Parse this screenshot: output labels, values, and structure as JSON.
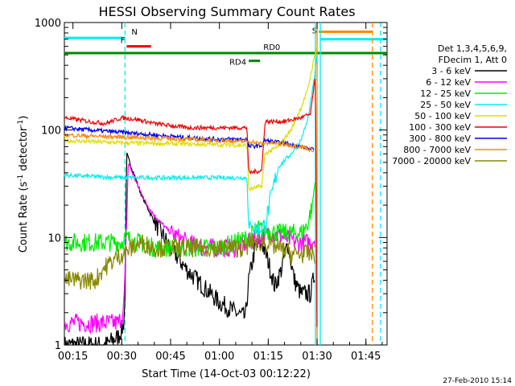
{
  "chart_data": {
    "type": "line",
    "title": "HESSI Observing Summary Count Rates",
    "xlabel": "Start Time (14-Oct-03 00:12:22)",
    "ylabel": "Count Rate (s⁻¹ detector⁻¹)",
    "ylabel_main": "Count Rate (s",
    "ylabel_sup1": "-1",
    "ylabel_mid": " detector",
    "ylabel_sup2": "-1",
    "ylabel_end": ")",
    "y_scale": "log",
    "ylim": [
      1,
      1000
    ],
    "xlim": [
      "00:12:22",
      "01:51:30"
    ],
    "x_ticks": [
      "00:15",
      "00:30",
      "00:45",
      "01:00",
      "01:15",
      "01:30",
      "01:45"
    ],
    "y_ticks": [
      "1",
      "10",
      "100",
      "1000"
    ],
    "legend": {
      "placement": "right",
      "header": [
        "Det 1,3,4,5,6,9,",
        "FDecim 1, Att 0"
      ],
      "entries": [
        {
          "label": "3 - 6 keV",
          "color": "#000000"
        },
        {
          "label": "6 - 12 keV",
          "color": "#ff00ff"
        },
        {
          "label": "12 - 25 keV",
          "color": "#00ee00"
        },
        {
          "label": "25 - 50 keV",
          "color": "#00eeee"
        },
        {
          "label": "50 - 100 keV",
          "color": "#dddd00"
        },
        {
          "label": "100 - 300 keV",
          "color": "#ee0000"
        },
        {
          "label": "300 - 800 keV",
          "color": "#0000ee"
        },
        {
          "label": "800 - 7000 keV",
          "color": "#ff8800"
        },
        {
          "label": "7000 - 20000 keV",
          "color": "#888800"
        }
      ]
    },
    "flag_bars": [
      {
        "label": "N",
        "color": "#00eeee",
        "start": "00:12:22",
        "end": "00:31:00",
        "level": 720
      },
      {
        "label": "F",
        "color": "#ee0000",
        "start": "00:31:30",
        "end": "00:39:00",
        "level": 600
      },
      {
        "label": "RD0",
        "color": "#008800",
        "start": "00:12:22",
        "end": "01:51:30",
        "level": 520
      },
      {
        "label": "RD4",
        "color": "#008800",
        "start": "01:09:00",
        "end": "01:12:30",
        "level": 440
      },
      {
        "label": "S",
        "color": "#ff8800",
        "start": "01:30:30",
        "end": "01:47:00",
        "level": 820
      },
      {
        "label": "",
        "color": "#00eeee",
        "start": "01:31:00",
        "end": "01:51:30",
        "level": 700
      }
    ],
    "vlines": [
      {
        "time": "00:31:00",
        "color": "#00eeee",
        "style": "dashed"
      },
      {
        "time": "01:29:30",
        "color": "#00eeee",
        "style": "solid"
      },
      {
        "time": "01:30:00",
        "color": "#ff8800",
        "style": "solid"
      },
      {
        "time": "01:31:00",
        "color": "#00eeee",
        "style": "solid"
      },
      {
        "time": "01:47:00",
        "color": "#ff8800",
        "style": "dashed"
      },
      {
        "time": "01:49:30",
        "color": "#00eeee",
        "style": "dashed"
      }
    ],
    "series": [
      {
        "name": "3 - 6 keV",
        "color": "#000000",
        "x": [
          "00:12:22",
          "00:25:00",
          "00:29:00",
          "00:30:30",
          "00:31:00",
          "00:31:30",
          "00:33:00",
          "00:36:00",
          "00:40:00",
          "00:45:00",
          "00:50:00",
          "00:55:00",
          "01:00:00",
          "01:05:00",
          "01:08:00",
          "01:09:00",
          "01:11:00",
          "01:13:00",
          "01:15:00",
          "01:17:00",
          "01:19:00",
          "01:21:00",
          "01:23:00",
          "01:25:00",
          "01:28:00",
          "01:29:30"
        ],
        "y": [
          1,
          1,
          1.2,
          1.5,
          2.5,
          60,
          45,
          25,
          14,
          8,
          5,
          3.5,
          2.5,
          2,
          1.8,
          4,
          8,
          9,
          6,
          3.5,
          5,
          9,
          4,
          3,
          3,
          5
        ]
      },
      {
        "name": "6 - 12 keV",
        "color": "#ff00ff",
        "x": [
          "00:12:22",
          "00:25:00",
          "00:29:00",
          "00:30:30",
          "00:31:00",
          "00:32:00",
          "00:34:00",
          "00:37:00",
          "00:40:00",
          "00:45:00",
          "00:50:00",
          "00:55:00",
          "01:00:00",
          "01:05:00",
          "01:09:00",
          "01:12:00",
          "01:16:00",
          "01:20:00",
          "01:24:00",
          "01:28:00",
          "01:29:30"
        ],
        "y": [
          1.6,
          1.6,
          1.6,
          2,
          4,
          50,
          35,
          22,
          16,
          11,
          9,
          8,
          8,
          8,
          9,
          10,
          11,
          10,
          9,
          9,
          10
        ]
      },
      {
        "name": "12 - 25 keV",
        "color": "#00ee00",
        "x": [
          "00:12:22",
          "00:20:00",
          "00:27:00",
          "00:30:00",
          "00:31:00",
          "00:40:00",
          "00:50:00",
          "01:00:00",
          "01:09:00",
          "01:12:00",
          "01:18:00",
          "01:22:00",
          "01:25:00",
          "01:27:00",
          "01:28:30",
          "01:29:30"
        ],
        "y": [
          9,
          9,
          9,
          9,
          10,
          8,
          8,
          8,
          10,
          12,
          11,
          11,
          11,
          13,
          20,
          35
        ]
      },
      {
        "name": "25 - 50 keV",
        "color": "#00eeee",
        "x": [
          "00:12:22",
          "00:20:00",
          "00:30:00",
          "00:40:00",
          "00:50:00",
          "01:00:00",
          "01:08:30",
          "01:09:00",
          "01:12:00",
          "01:14:00",
          "01:18:00",
          "01:22:00",
          "01:25:00",
          "01:27:00",
          "01:28:00",
          "01:29:00",
          "01:30:00"
        ],
        "y": [
          38,
          37,
          36,
          36,
          36,
          36,
          36,
          12,
          12,
          13,
          45,
          60,
          80,
          120,
          180,
          280,
          500
        ]
      },
      {
        "name": "50 - 100 keV",
        "color": "#dddd00",
        "x": [
          "00:12:22",
          "00:20:00",
          "00:30:00",
          "00:40:00",
          "00:50:00",
          "01:00:00",
          "01:08:30",
          "01:09:00",
          "01:13:00",
          "01:14:00",
          "01:18:00",
          "01:22:00",
          "01:25:00",
          "01:27:00",
          "01:28:00",
          "01:29:00",
          "01:30:00"
        ],
        "y": [
          80,
          78,
          76,
          75,
          74,
          73,
          72,
          28,
          30,
          60,
          70,
          100,
          160,
          230,
          320,
          450,
          620
        ]
      },
      {
        "name": "100 - 300 keV",
        "color": "#ee0000",
        "x": [
          "00:12:22",
          "00:20:00",
          "00:25:00",
          "00:30:00",
          "00:35:00",
          "00:40:00",
          "00:50:00",
          "01:00:00",
          "01:08:30",
          "01:09:00",
          "01:13:00",
          "01:14:00",
          "01:20:00",
          "01:25:00",
          "01:28:00",
          "01:29:00",
          "01:29:30",
          "01:30:00"
        ],
        "y": [
          130,
          120,
          115,
          130,
          125,
          115,
          105,
          105,
          105,
          40,
          42,
          120,
          120,
          130,
          140,
          250,
          300,
          1
        ]
      },
      {
        "name": "300 - 800 keV",
        "color": "#0000ee",
        "x": [
          "00:12:22",
          "00:20:00",
          "00:30:00",
          "00:40:00",
          "00:50:00",
          "01:00:00",
          "01:08:30",
          "01:09:00",
          "01:13:00",
          "01:14:00",
          "01:20:00",
          "01:25:00",
          "01:29:00"
        ],
        "y": [
          105,
          100,
          95,
          90,
          85,
          82,
          82,
          70,
          72,
          80,
          75,
          70,
          65
        ]
      },
      {
        "name": "800 - 7000 keV",
        "color": "#ff8800",
        "x": [
          "00:12:22",
          "00:20:00",
          "00:30:00",
          "00:40:00",
          "00:50:00",
          "01:00:00",
          "01:08:30",
          "01:10:00",
          "01:13:00",
          "01:15:00",
          "01:20:00",
          "01:25:00",
          "01:29:00"
        ],
        "y": [
          90,
          88,
          86,
          84,
          82,
          80,
          78,
          78,
          74,
          76,
          74,
          70,
          65
        ]
      },
      {
        "name": "7000 - 20000 keV",
        "color": "#888800",
        "x": [
          "00:12:22",
          "00:22:00",
          "00:24:00",
          "00:27:00",
          "00:30:00",
          "00:33:00",
          "00:36:00",
          "00:40:00",
          "00:50:00",
          "01:00:00",
          "01:08:00",
          "01:10:00",
          "01:14:00",
          "01:18:00",
          "01:22:00",
          "01:25:00",
          "01:28:00",
          "01:29:30"
        ],
        "y": [
          4,
          4,
          5,
          6,
          7,
          8,
          9,
          8,
          8,
          8,
          8,
          9,
          9,
          8,
          7,
          7,
          7,
          7
        ]
      }
    ]
  },
  "footer": {
    "timestamp": "27-Feb-2010 15:14"
  }
}
